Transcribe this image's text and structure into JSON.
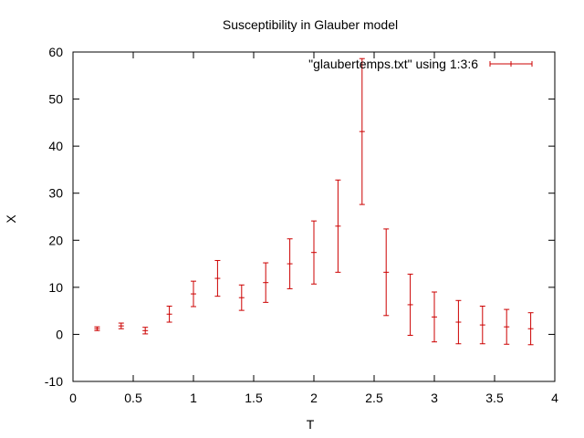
{
  "chart_data": {
    "type": "scatter",
    "title": "Susceptibility in Glauber model",
    "xlabel": "T",
    "ylabel": "X",
    "xlim": [
      0,
      4
    ],
    "ylim": [
      -10,
      60
    ],
    "xticks": [
      0,
      0.5,
      1,
      1.5,
      2,
      2.5,
      3,
      3.5,
      4
    ],
    "xtick_labels": [
      "0",
      "0.5",
      "1",
      "1.5",
      "2",
      "2.5",
      "3",
      "3.5",
      "4"
    ],
    "yticks": [
      -10,
      0,
      10,
      20,
      30,
      40,
      50,
      60
    ],
    "ytick_labels": [
      "-10",
      "0",
      "10",
      "20",
      "30",
      "40",
      "50",
      "60"
    ],
    "grid": false,
    "legend": {
      "position": "top-right"
    },
    "series": [
      {
        "name": "\"glaubertemps.txt\" using 1:3:6",
        "style": "errorbars",
        "color": "#cc0000",
        "points": [
          {
            "x": 0.2,
            "y": 1.2,
            "err": 0.4
          },
          {
            "x": 0.4,
            "y": 1.8,
            "err": 0.6
          },
          {
            "x": 0.6,
            "y": 0.8,
            "err": 0.7
          },
          {
            "x": 0.8,
            "y": 4.3,
            "err": 1.7
          },
          {
            "x": 1.0,
            "y": 8.6,
            "err": 2.7
          },
          {
            "x": 1.2,
            "y": 11.9,
            "err": 3.8
          },
          {
            "x": 1.4,
            "y": 7.8,
            "err": 2.7
          },
          {
            "x": 1.6,
            "y": 11.0,
            "err": 4.2
          },
          {
            "x": 1.8,
            "y": 15.0,
            "err": 5.3
          },
          {
            "x": 2.0,
            "y": 17.4,
            "err": 6.7
          },
          {
            "x": 2.2,
            "y": 23.0,
            "err": 9.8
          },
          {
            "x": 2.4,
            "y": 43.1,
            "err": 15.5
          },
          {
            "x": 2.6,
            "y": 13.2,
            "err": 9.2
          },
          {
            "x": 2.8,
            "y": 6.3,
            "err": 6.5
          },
          {
            "x": 3.0,
            "y": 3.7,
            "err": 5.3
          },
          {
            "x": 3.2,
            "y": 2.6,
            "err": 4.6
          },
          {
            "x": 3.4,
            "y": 2.0,
            "err": 4.0
          },
          {
            "x": 3.6,
            "y": 1.6,
            "err": 3.7
          },
          {
            "x": 3.8,
            "y": 1.2,
            "err": 3.4
          }
        ]
      }
    ]
  }
}
